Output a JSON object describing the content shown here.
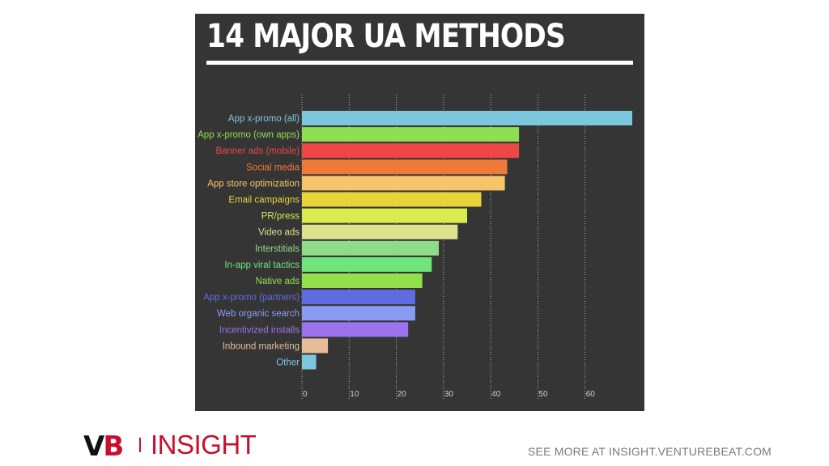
{
  "title": "14 MAJOR UA METHODS",
  "branding": {
    "logo_v": "V",
    "logo_b": "B",
    "logo_insight": "INSIGHT"
  },
  "footer": {
    "link_text": "SEE MORE AT INSIGHT.VENTUREBEAT.COM"
  },
  "colors": {
    "panel_background": "#353535",
    "gridline": "#cfcfcf",
    "brand_red": "#c8102e"
  },
  "chart_data": {
    "type": "bar",
    "orientation": "horizontal",
    "title": "14 MAJOR UA METHODS",
    "xlabel": "",
    "ylabel": "",
    "xlim": [
      0,
      70
    ],
    "xticks": [
      0,
      10,
      20,
      30,
      40,
      50,
      60
    ],
    "grid": true,
    "categories": [
      "App x-promo (all)",
      "App x-promo (own apps)",
      "Banner ads (mobile)",
      "Social media",
      "App store optimization",
      "Email campaigns",
      "PR/press",
      "Video ads",
      "Interstitials",
      "In-app viral tactics",
      "Native ads",
      "App x-promo (partners)",
      "Web organic search",
      "Incentivized installs",
      "Inbound marketing",
      "Other"
    ],
    "values": [
      70,
      46,
      46,
      43.5,
      43,
      38,
      35,
      33,
      29,
      27.5,
      25.5,
      24,
      24,
      22.5,
      5.5,
      3
    ],
    "colors": [
      "#7cc7de",
      "#8ee052",
      "#ee4747",
      "#f07a37",
      "#f6c46a",
      "#e7d43b",
      "#d9ec4e",
      "#dce28d",
      "#8fdc88",
      "#6fe57b",
      "#93df4c",
      "#5f6be0",
      "#8a9bf3",
      "#9c73ef",
      "#e6bd98",
      "#7cc7de"
    ]
  }
}
